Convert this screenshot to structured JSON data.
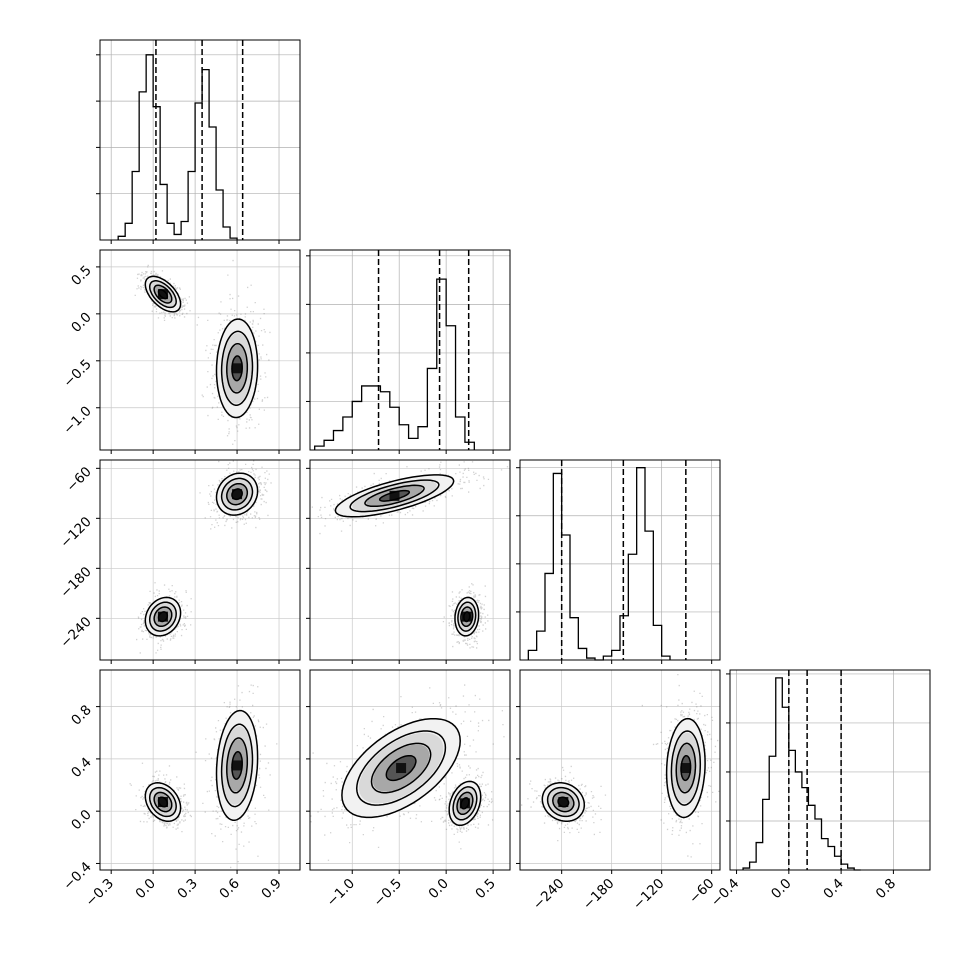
{
  "chart_data": {
    "type": "corner",
    "grid": true,
    "parameters": [
      {
        "ticks": [
          -0.3,
          0.0,
          0.3,
          0.6,
          0.9
        ],
        "tick_labels": [
          "−0.3",
          "0.0",
          "0.3",
          "0.6",
          "0.9"
        ],
        "range": [
          -0.38,
          1.05
        ],
        "quantiles": [
          0.02,
          0.35,
          0.64
        ]
      },
      {
        "ticks": [
          -1.0,
          -0.5,
          0.0,
          0.5
        ],
        "tick_labels": [
          "−1.0",
          "−0.5",
          "0.0",
          "0.5"
        ],
        "range": [
          -1.45,
          0.68
        ],
        "quantiles": [
          -0.72,
          -0.07,
          0.24
        ]
      },
      {
        "ticks": [
          -240,
          -180,
          -120,
          -60
        ],
        "tick_labels": [
          "−240",
          "−180",
          "−120",
          "−60"
        ],
        "range": [
          -290,
          -50
        ],
        "quantiles": [
          -240,
          -166,
          -91
        ]
      },
      {
        "ticks": [
          -0.4,
          0.0,
          0.4,
          0.8
        ],
        "tick_labels": [
          "−0.4",
          "0.0",
          "0.4",
          "0.8"
        ],
        "range": [
          -0.45,
          1.08
        ],
        "quantiles": [
          0.0,
          0.14,
          0.4
        ]
      }
    ],
    "histograms": [
      {
        "param": 0,
        "start": -0.25,
        "step": 0.05,
        "counts": [
          0.02,
          0.09,
          0.37,
          0.8,
          1.0,
          0.72,
          0.3,
          0.09,
          0.03,
          0.1,
          0.37,
          0.74,
          0.92,
          0.61,
          0.27,
          0.07,
          0.01
        ],
        "ylim_top": 1.08
      },
      {
        "param": 1,
        "start": -1.4,
        "step": 0.1,
        "counts": [
          0.02,
          0.05,
          0.1,
          0.17,
          0.25,
          0.33,
          0.33,
          0.3,
          0.22,
          0.13,
          0.06,
          0.12,
          0.42,
          0.88,
          0.64,
          0.17,
          0.04
        ],
        "ylim_top": 1.03
      },
      {
        "param": 2,
        "start": -280,
        "step": 10,
        "counts": [
          0.05,
          0.15,
          0.45,
          0.97,
          0.65,
          0.22,
          0.06,
          0.01,
          0.0,
          0.02,
          0.05,
          0.23,
          0.55,
          1.0,
          0.67,
          0.18,
          0.02
        ],
        "ylim_top": 1.04
      },
      {
        "param": 3,
        "start": -0.35,
        "step": 0.05,
        "counts": [
          0.01,
          0.04,
          0.14,
          0.36,
          0.58,
          0.98,
          0.83,
          0.61,
          0.5,
          0.42,
          0.33,
          0.26,
          0.16,
          0.12,
          0.07,
          0.03,
          0.01,
          0.0
        ],
        "ylim_top": 1.02
      }
    ],
    "blobs": [
      {
        "x": 0,
        "y": 1,
        "modes": [
          {
            "cx": 0.07,
            "cy": 0.21,
            "sx": 0.06,
            "sy": 0.09,
            "rho": -0.55,
            "w": 0.5
          },
          {
            "cx": 0.6,
            "cy": -0.58,
            "sx": 0.07,
            "sy": 0.25,
            "rho": 0.05,
            "w": 0.5
          }
        ]
      },
      {
        "x": 0,
        "y": 2,
        "modes": [
          {
            "cx": 0.07,
            "cy": -238,
            "sx": 0.06,
            "sy": 11,
            "rho": 0.2,
            "w": 0.5
          },
          {
            "cx": 0.6,
            "cy": -91,
            "sx": 0.07,
            "sy": 12,
            "rho": 0.15,
            "w": 0.5
          }
        ]
      },
      {
        "x": 0,
        "y": 3,
        "modes": [
          {
            "cx": 0.07,
            "cy": 0.07,
            "sx": 0.06,
            "sy": 0.07,
            "rho": -0.3,
            "w": 0.5
          },
          {
            "cx": 0.6,
            "cy": 0.35,
            "sx": 0.07,
            "sy": 0.2,
            "rho": 0.15,
            "w": 0.5
          }
        ]
      },
      {
        "x": 1,
        "y": 2,
        "modes": [
          {
            "cx": -0.55,
            "cy": -93,
            "sx": 0.3,
            "sy": 12,
            "rho": 0.7,
            "w": 0.5
          },
          {
            "cx": 0.22,
            "cy": -238,
            "sx": 0.06,
            "sy": 11,
            "rho": 0.1,
            "w": 0.5
          }
        ]
      },
      {
        "x": 1,
        "y": 3,
        "modes": [
          {
            "cx": -0.48,
            "cy": 0.33,
            "sx": 0.3,
            "sy": 0.18,
            "rho": 0.55,
            "w": 0.5
          },
          {
            "cx": 0.2,
            "cy": 0.06,
            "sx": 0.08,
            "sy": 0.08,
            "rho": 0.3,
            "w": 0.5
          }
        ]
      },
      {
        "x": 2,
        "y": 3,
        "modes": [
          {
            "cx": -238,
            "cy": 0.07,
            "sx": 12,
            "sy": 0.07,
            "rho": -0.15,
            "w": 0.5
          },
          {
            "cx": -91,
            "cy": 0.33,
            "sx": 11,
            "sy": 0.18,
            "rho": 0.1,
            "w": 0.5
          }
        ]
      }
    ],
    "contour_levels_sigma": [
      0.5,
      1.0,
      1.5,
      2.0
    ]
  }
}
